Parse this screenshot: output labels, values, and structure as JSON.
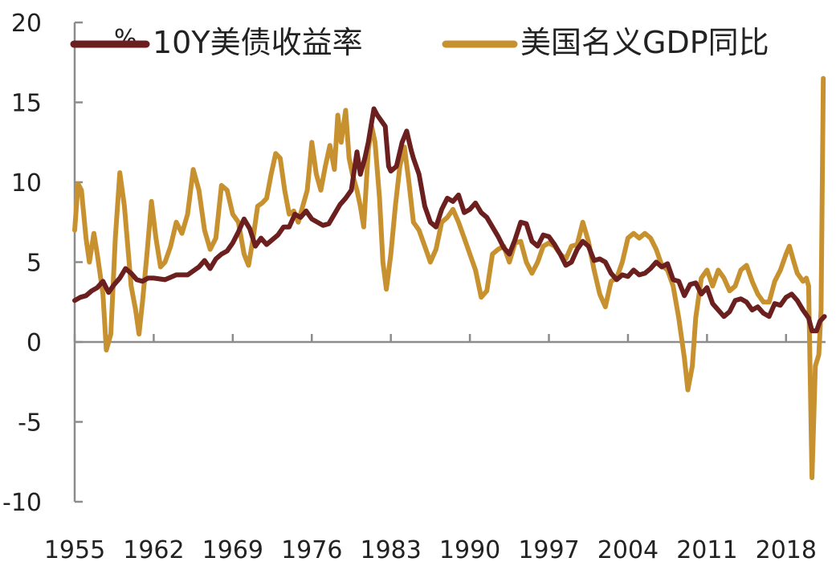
{
  "chart_data": {
    "type": "line",
    "title": "",
    "unit_label": "%",
    "xlabel": "",
    "ylabel": "",
    "xlim": [
      1955,
      2021.5
    ],
    "ylim": [
      -10,
      20
    ],
    "y_ticks": [
      20,
      15,
      10,
      5,
      0,
      -5,
      -10
    ],
    "x_ticks": [
      1955,
      1962,
      1969,
      1976,
      1983,
      1990,
      1997,
      2004,
      2011,
      2018
    ],
    "grid": false,
    "legend_position": "top",
    "series": [
      {
        "name": "10Y美债收益率",
        "color": "#6b1f1f",
        "points": [
          [
            1955.0,
            2.6
          ],
          [
            1955.5,
            2.8
          ],
          [
            1956.0,
            2.9
          ],
          [
            1956.5,
            3.2
          ],
          [
            1957.0,
            3.4
          ],
          [
            1957.5,
            3.8
          ],
          [
            1958.0,
            3.1
          ],
          [
            1958.5,
            3.6
          ],
          [
            1959.0,
            4.0
          ],
          [
            1959.5,
            4.6
          ],
          [
            1960.0,
            4.3
          ],
          [
            1960.5,
            3.9
          ],
          [
            1961.0,
            3.8
          ],
          [
            1961.5,
            4.0
          ],
          [
            1962.0,
            4.0
          ],
          [
            1963.0,
            3.9
          ],
          [
            1964.0,
            4.2
          ],
          [
            1965.0,
            4.2
          ],
          [
            1966.0,
            4.7
          ],
          [
            1966.5,
            5.1
          ],
          [
            1967.0,
            4.6
          ],
          [
            1967.5,
            5.2
          ],
          [
            1968.0,
            5.5
          ],
          [
            1968.5,
            5.7
          ],
          [
            1969.0,
            6.2
          ],
          [
            1969.5,
            6.9
          ],
          [
            1970.0,
            7.7
          ],
          [
            1970.5,
            7.1
          ],
          [
            1971.0,
            6.0
          ],
          [
            1971.5,
            6.5
          ],
          [
            1972.0,
            6.1
          ],
          [
            1972.5,
            6.4
          ],
          [
            1973.0,
            6.7
          ],
          [
            1973.5,
            7.2
          ],
          [
            1974.0,
            7.2
          ],
          [
            1974.5,
            8.0
          ],
          [
            1975.0,
            7.8
          ],
          [
            1975.5,
            8.2
          ],
          [
            1976.0,
            7.7
          ],
          [
            1976.5,
            7.5
          ],
          [
            1977.0,
            7.3
          ],
          [
            1977.5,
            7.4
          ],
          [
            1978.0,
            8.0
          ],
          [
            1978.5,
            8.6
          ],
          [
            1979.0,
            9.0
          ],
          [
            1979.5,
            9.5
          ],
          [
            1980.0,
            11.9
          ],
          [
            1980.3,
            10.5
          ],
          [
            1980.7,
            11.5
          ],
          [
            1981.0,
            12.5
          ],
          [
            1981.5,
            14.6
          ],
          [
            1981.8,
            14.2
          ],
          [
            1982.0,
            14.0
          ],
          [
            1982.5,
            13.5
          ],
          [
            1982.8,
            11.0
          ],
          [
            1983.0,
            10.7
          ],
          [
            1983.5,
            11.0
          ],
          [
            1984.0,
            12.5
          ],
          [
            1984.4,
            13.2
          ],
          [
            1984.8,
            12.0
          ],
          [
            1985.0,
            11.5
          ],
          [
            1985.5,
            10.5
          ],
          [
            1986.0,
            8.5
          ],
          [
            1986.5,
            7.5
          ],
          [
            1987.0,
            7.2
          ],
          [
            1987.5,
            8.3
          ],
          [
            1988.0,
            9.0
          ],
          [
            1988.5,
            8.8
          ],
          [
            1989.0,
            9.2
          ],
          [
            1989.5,
            8.1
          ],
          [
            1990.0,
            8.3
          ],
          [
            1990.5,
            8.7
          ],
          [
            1991.0,
            8.1
          ],
          [
            1991.5,
            7.8
          ],
          [
            1992.0,
            7.2
          ],
          [
            1992.5,
            6.6
          ],
          [
            1993.0,
            5.9
          ],
          [
            1993.5,
            5.5
          ],
          [
            1994.0,
            6.4
          ],
          [
            1994.5,
            7.5
          ],
          [
            1995.0,
            7.4
          ],
          [
            1995.5,
            6.3
          ],
          [
            1996.0,
            6.0
          ],
          [
            1996.5,
            6.7
          ],
          [
            1997.0,
            6.6
          ],
          [
            1997.5,
            6.1
          ],
          [
            1998.0,
            5.5
          ],
          [
            1998.5,
            4.8
          ],
          [
            1999.0,
            5.0
          ],
          [
            1999.5,
            5.8
          ],
          [
            2000.0,
            6.3
          ],
          [
            2000.5,
            6.0
          ],
          [
            2001.0,
            5.1
          ],
          [
            2001.5,
            5.2
          ],
          [
            2002.0,
            5.0
          ],
          [
            2002.5,
            4.3
          ],
          [
            2003.0,
            3.9
          ],
          [
            2003.5,
            4.2
          ],
          [
            2004.0,
            4.1
          ],
          [
            2004.5,
            4.5
          ],
          [
            2005.0,
            4.2
          ],
          [
            2005.5,
            4.3
          ],
          [
            2006.0,
            4.6
          ],
          [
            2006.5,
            5.0
          ],
          [
            2007.0,
            4.7
          ],
          [
            2007.5,
            4.9
          ],
          [
            2008.0,
            3.9
          ],
          [
            2008.5,
            3.8
          ],
          [
            2009.0,
            2.9
          ],
          [
            2009.5,
            3.6
          ],
          [
            2010.0,
            3.7
          ],
          [
            2010.5,
            3.0
          ],
          [
            2011.0,
            3.4
          ],
          [
            2011.5,
            2.4
          ],
          [
            2012.0,
            2.0
          ],
          [
            2012.5,
            1.6
          ],
          [
            2013.0,
            1.9
          ],
          [
            2013.5,
            2.6
          ],
          [
            2014.0,
            2.7
          ],
          [
            2014.5,
            2.5
          ],
          [
            2015.0,
            2.0
          ],
          [
            2015.5,
            2.2
          ],
          [
            2016.0,
            1.8
          ],
          [
            2016.5,
            1.6
          ],
          [
            2017.0,
            2.4
          ],
          [
            2017.5,
            2.3
          ],
          [
            2018.0,
            2.8
          ],
          [
            2018.5,
            3.0
          ],
          [
            2019.0,
            2.6
          ],
          [
            2019.5,
            2.0
          ],
          [
            2020.0,
            1.5
          ],
          [
            2020.3,
            0.7
          ],
          [
            2020.7,
            0.7
          ],
          [
            2021.0,
            1.3
          ],
          [
            2021.4,
            1.6
          ]
        ]
      },
      {
        "name": "美国名义GDP同比",
        "color": "#c8912f",
        "points": [
          [
            1955.0,
            7.0
          ],
          [
            1955.3,
            9.9
          ],
          [
            1955.6,
            9.5
          ],
          [
            1956.0,
            6.5
          ],
          [
            1956.3,
            5.0
          ],
          [
            1956.7,
            6.8
          ],
          [
            1957.0,
            5.5
          ],
          [
            1957.5,
            3.0
          ],
          [
            1957.8,
            -0.5
          ],
          [
            1958.2,
            0.5
          ],
          [
            1958.6,
            6.5
          ],
          [
            1959.0,
            10.6
          ],
          [
            1959.4,
            8.5
          ],
          [
            1959.7,
            6.0
          ],
          [
            1960.0,
            3.5
          ],
          [
            1960.4,
            2.0
          ],
          [
            1960.7,
            0.5
          ],
          [
            1961.0,
            2.5
          ],
          [
            1961.4,
            5.5
          ],
          [
            1961.8,
            8.8
          ],
          [
            1962.2,
            6.5
          ],
          [
            1962.6,
            4.7
          ],
          [
            1963.0,
            5.0
          ],
          [
            1963.5,
            6.0
          ],
          [
            1964.0,
            7.5
          ],
          [
            1964.5,
            6.8
          ],
          [
            1965.0,
            8.0
          ],
          [
            1965.5,
            10.8
          ],
          [
            1966.0,
            9.5
          ],
          [
            1966.5,
            7.0
          ],
          [
            1967.0,
            5.8
          ],
          [
            1967.5,
            6.5
          ],
          [
            1968.0,
            9.8
          ],
          [
            1968.5,
            9.5
          ],
          [
            1969.0,
            8.0
          ],
          [
            1969.5,
            7.5
          ],
          [
            1970.0,
            5.5
          ],
          [
            1970.4,
            4.8
          ],
          [
            1970.8,
            6.5
          ],
          [
            1971.2,
            8.5
          ],
          [
            1971.6,
            8.7
          ],
          [
            1972.0,
            9.0
          ],
          [
            1972.4,
            10.5
          ],
          [
            1972.8,
            11.8
          ],
          [
            1973.2,
            11.5
          ],
          [
            1973.6,
            9.5
          ],
          [
            1974.0,
            8.0
          ],
          [
            1974.4,
            8.2
          ],
          [
            1974.8,
            7.5
          ],
          [
            1975.2,
            8.5
          ],
          [
            1975.6,
            9.5
          ],
          [
            1976.0,
            12.5
          ],
          [
            1976.4,
            10.5
          ],
          [
            1976.8,
            9.5
          ],
          [
            1977.2,
            11.0
          ],
          [
            1977.6,
            12.3
          ],
          [
            1978.0,
            10.8
          ],
          [
            1978.3,
            14.2
          ],
          [
            1978.6,
            12.5
          ],
          [
            1979.0,
            14.5
          ],
          [
            1979.3,
            11.5
          ],
          [
            1979.6,
            10.5
          ],
          [
            1980.0,
            9.5
          ],
          [
            1980.3,
            8.5
          ],
          [
            1980.6,
            7.2
          ],
          [
            1981.0,
            12.0
          ],
          [
            1981.3,
            13.5
          ],
          [
            1981.6,
            12.5
          ],
          [
            1982.0,
            9.0
          ],
          [
            1982.3,
            5.0
          ],
          [
            1982.6,
            3.3
          ],
          [
            1983.0,
            5.5
          ],
          [
            1983.4,
            8.5
          ],
          [
            1983.8,
            11.0
          ],
          [
            1984.2,
            12.2
          ],
          [
            1984.6,
            10.0
          ],
          [
            1985.0,
            7.5
          ],
          [
            1985.5,
            7.0
          ],
          [
            1986.0,
            6.0
          ],
          [
            1986.5,
            5.0
          ],
          [
            1987.0,
            5.8
          ],
          [
            1987.5,
            7.5
          ],
          [
            1988.0,
            7.8
          ],
          [
            1988.5,
            8.3
          ],
          [
            1989.0,
            7.5
          ],
          [
            1989.5,
            6.5
          ],
          [
            1990.0,
            5.5
          ],
          [
            1990.5,
            4.5
          ],
          [
            1991.0,
            2.8
          ],
          [
            1991.5,
            3.2
          ],
          [
            1992.0,
            5.5
          ],
          [
            1992.5,
            5.8
          ],
          [
            1993.0,
            6.0
          ],
          [
            1993.5,
            5.0
          ],
          [
            1994.0,
            6.2
          ],
          [
            1994.5,
            6.3
          ],
          [
            1995.0,
            5.0
          ],
          [
            1995.5,
            4.3
          ],
          [
            1996.0,
            5.0
          ],
          [
            1996.5,
            6.0
          ],
          [
            1997.0,
            6.2
          ],
          [
            1997.5,
            6.0
          ],
          [
            1998.0,
            5.5
          ],
          [
            1998.5,
            5.2
          ],
          [
            1999.0,
            6.0
          ],
          [
            1999.5,
            6.1
          ],
          [
            2000.0,
            7.5
          ],
          [
            2000.5,
            6.3
          ],
          [
            2001.0,
            4.5
          ],
          [
            2001.5,
            3.0
          ],
          [
            2002.0,
            2.2
          ],
          [
            2002.5,
            3.8
          ],
          [
            2003.0,
            4.0
          ],
          [
            2003.5,
            5.0
          ],
          [
            2004.0,
            6.5
          ],
          [
            2004.5,
            6.8
          ],
          [
            2005.0,
            6.5
          ],
          [
            2005.5,
            6.8
          ],
          [
            2006.0,
            6.5
          ],
          [
            2006.5,
            5.8
          ],
          [
            2007.0,
            4.8
          ],
          [
            2007.5,
            4.5
          ],
          [
            2008.0,
            3.5
          ],
          [
            2008.5,
            1.5
          ],
          [
            2009.0,
            -1.0
          ],
          [
            2009.3,
            -3.0
          ],
          [
            2009.7,
            -1.5
          ],
          [
            2010.0,
            1.5
          ],
          [
            2010.5,
            4.0
          ],
          [
            2011.0,
            4.5
          ],
          [
            2011.5,
            3.5
          ],
          [
            2012.0,
            4.5
          ],
          [
            2012.5,
            4.0
          ],
          [
            2013.0,
            3.2
          ],
          [
            2013.5,
            3.5
          ],
          [
            2014.0,
            4.5
          ],
          [
            2014.5,
            4.8
          ],
          [
            2015.0,
            3.8
          ],
          [
            2015.5,
            3.0
          ],
          [
            2016.0,
            2.5
          ],
          [
            2016.5,
            2.5
          ],
          [
            2017.0,
            3.8
          ],
          [
            2017.5,
            4.5
          ],
          [
            2018.0,
            5.5
          ],
          [
            2018.3,
            6.0
          ],
          [
            2018.7,
            5.0
          ],
          [
            2019.0,
            4.3
          ],
          [
            2019.5,
            3.8
          ],
          [
            2019.8,
            4.0
          ],
          [
            2020.0,
            3.5
          ],
          [
            2020.3,
            -8.5
          ],
          [
            2020.6,
            -1.5
          ],
          [
            2020.9,
            -0.8
          ],
          [
            2021.1,
            2.0
          ],
          [
            2021.3,
            16.5
          ]
        ]
      }
    ]
  }
}
